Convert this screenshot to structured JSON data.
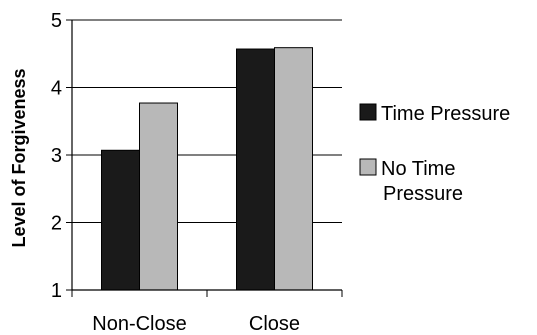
{
  "chart_data": {
    "type": "bar",
    "ylabel": "Level of Forgiveness",
    "xlabel": "",
    "categories": [
      "Non-Close",
      "Close"
    ],
    "series": [
      {
        "name": "Time Pressure",
        "values": [
          3.07,
          4.57
        ],
        "color": "#1a1a1a"
      },
      {
        "name": "No Time Pressure",
        "values": [
          3.77,
          4.59
        ],
        "color": "#b8b8b8"
      }
    ],
    "ylim": [
      1,
      5
    ],
    "yticks": [
      1,
      2,
      3,
      4,
      5
    ],
    "grid": "horizontal",
    "legend_position": "right",
    "legend_lines": [
      [
        "Time Pressure"
      ],
      [
        "No Time",
        "Pressure"
      ]
    ]
  }
}
